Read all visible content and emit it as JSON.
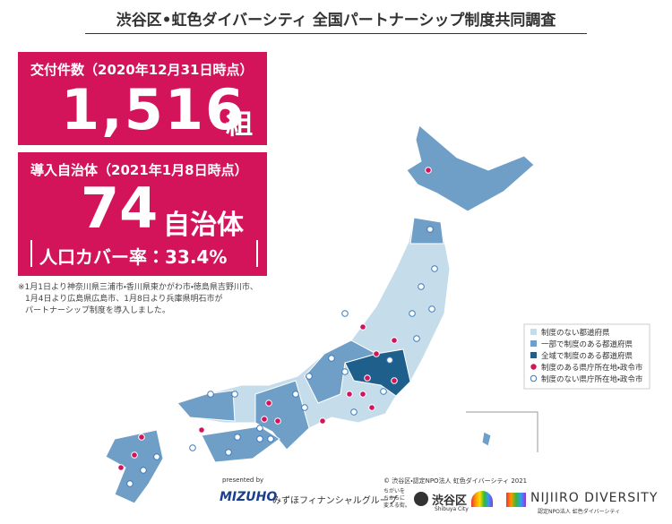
{
  "header": {
    "title": "渋谷区•虹色ダイバーシティ 全国パートナーシップ制度共同調査"
  },
  "stats": [
    {
      "label": "交付件数（2020年12月31日時点）",
      "number": "1,516",
      "unit": "組"
    },
    {
      "label": "導入自治体（2021年1月8日時点）",
      "number": "74",
      "unit": "自治体",
      "coverage": "人口カバー率：33.4%"
    }
  ],
  "note": [
    "※1月1日より神奈川県三浦市・香川県東かがわ市・徳島県吉野川市、",
    "1月4日より広島県広島市、1月8日より兵庫県明石市が",
    "パートナーシップ制度を導入しました。"
  ],
  "legend": [
    "制度のない都道府県",
    "一部で制度のある都道府県",
    "全域で制度のある都道府県",
    "制度のある県庁所在地・政令市",
    "制度のない県庁所在地・政令市"
  ],
  "footer": {
    "presented": "presented by",
    "mizuho": "MIZUHO",
    "mizuho_group": "みずほフィナンシャルグループ",
    "copyright": "© 渋谷区・認定NPO法人 虹色ダイバーシティ 2021",
    "slogan": [
      "ちがいを",
      "ちからに",
      "変える街。"
    ],
    "shibuya": "渋谷区",
    "shibuya_en": "Shibuya City",
    "nijiiro": "NIJIIRO DIVERSITY",
    "nijiiro_sub": "認定NPO法人 虹色ダイバーシティ"
  }
}
